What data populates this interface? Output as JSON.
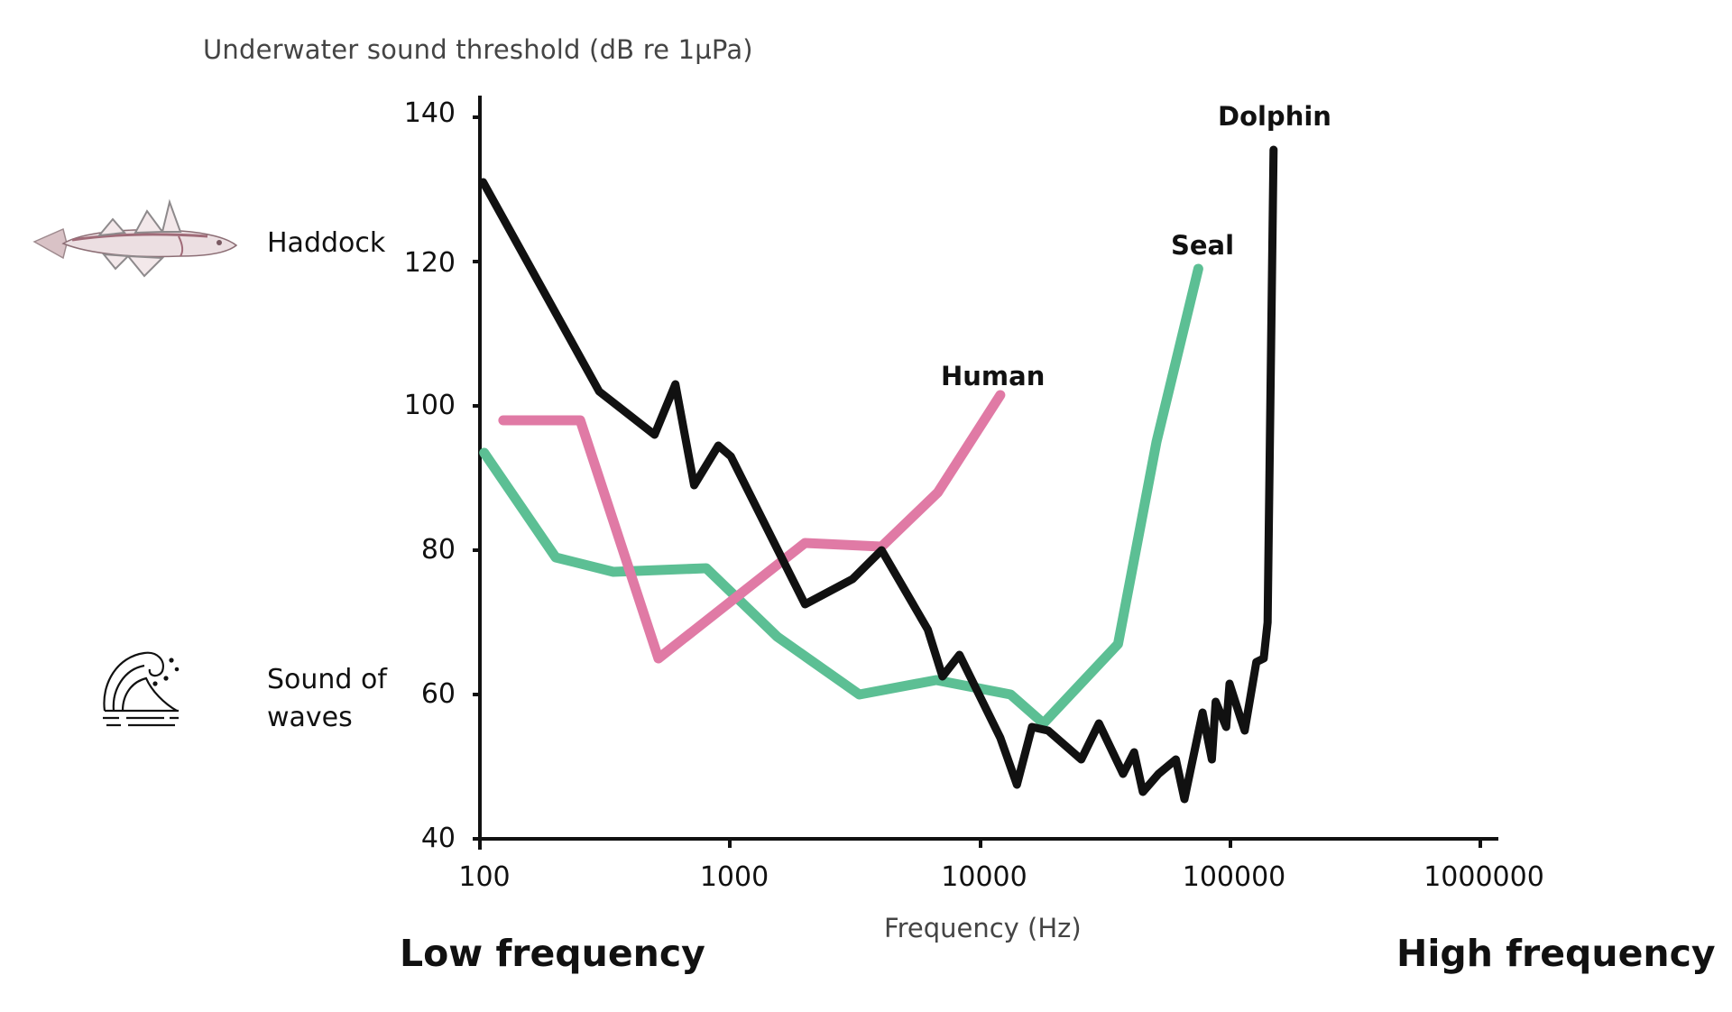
{
  "chart_data": {
    "type": "line",
    "title": "",
    "ylabel": "Underwater sound threshold (dB re 1µPa)",
    "xlabel": "Frequency (Hz)",
    "xscale": "log",
    "xlim": [
      100,
      1000000
    ],
    "ylim": [
      40,
      140
    ],
    "grid": false,
    "legend_position": "inline labels at curve ends",
    "x_ticks": [
      "100",
      "1000",
      "10000",
      "100000",
      "1000000"
    ],
    "y_ticks": [
      "40",
      "60",
      "80",
      "100",
      "120",
      "140"
    ],
    "series": [
      {
        "name": "Dolphin",
        "color": "#111111",
        "points": [
          [
            103,
            131
          ],
          [
            300,
            102
          ],
          [
            500,
            96
          ],
          [
            606,
            103
          ],
          [
            720,
            89
          ],
          [
            900,
            94.5
          ],
          [
            1010,
            93
          ],
          [
            2000,
            72.5
          ],
          [
            3100,
            76
          ],
          [
            4050,
            80
          ],
          [
            6200,
            69
          ],
          [
            7100,
            62.5
          ],
          [
            8300,
            65.5
          ],
          [
            12100,
            54
          ],
          [
            14100,
            47.5
          ],
          [
            16200,
            55.5
          ],
          [
            18800,
            55
          ],
          [
            25500,
            51
          ],
          [
            30000,
            56
          ],
          [
            37500,
            49
          ],
          [
            41500,
            52
          ],
          [
            45000,
            46.5
          ],
          [
            52000,
            49
          ],
          [
            61000,
            51
          ],
          [
            66000,
            45.5
          ],
          [
            78000,
            57.5
          ],
          [
            85000,
            51
          ],
          [
            88000,
            59
          ],
          [
            97000,
            55.5
          ],
          [
            100000,
            61.5
          ],
          [
            110000,
            57
          ],
          [
            115000,
            55
          ],
          [
            128000,
            64.5
          ],
          [
            137000,
            65
          ],
          [
            142000,
            70
          ],
          [
            150000,
            135.5
          ]
        ]
      },
      {
        "name": "Human",
        "color": "#e07aa5",
        "points": [
          [
            124,
            98
          ],
          [
            252,
            98
          ],
          [
            518,
            65
          ],
          [
            2000,
            81
          ],
          [
            4050,
            80.5
          ],
          [
            6800,
            88
          ],
          [
            12100,
            101.5
          ]
        ]
      },
      {
        "name": "Seal",
        "color": "#5cbf94",
        "points": [
          [
            104,
            93.5
          ],
          [
            201,
            79
          ],
          [
            342,
            77
          ],
          [
            805,
            77.5
          ],
          [
            1550,
            68
          ],
          [
            3300,
            60
          ],
          [
            6700,
            62
          ],
          [
            13300,
            60
          ],
          [
            18000,
            56
          ],
          [
            35800,
            67
          ],
          [
            51000,
            95
          ],
          [
            75000,
            119
          ]
        ]
      }
    ],
    "annotations": [
      {
        "text": "Haddock",
        "y_value": 120,
        "icon": "fish-icon"
      },
      {
        "text": "Sound of waves",
        "y_value": 60,
        "icon": "wave-icon"
      }
    ],
    "axis_end_labels": {
      "left": "Low frequency",
      "right": "High frequency"
    }
  },
  "labels": {
    "ylabel": "Underwater sound threshold (dB re 1µPa)",
    "xlabel": "Frequency (Hz)",
    "low": "Low frequency",
    "high": "High frequency",
    "haddock": "Haddock",
    "waves_line1": "Sound of",
    "waves_line2": "waves",
    "dolphin": "Dolphin",
    "human": "Human",
    "seal": "Seal"
  }
}
